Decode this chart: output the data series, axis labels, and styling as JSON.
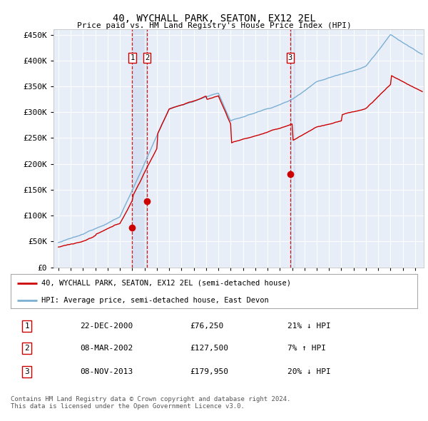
{
  "title": "40, WYCHALL PARK, SEATON, EX12 2EL",
  "subtitle": "Price paid vs. HM Land Registry's House Price Index (HPI)",
  "bg_color": "#ffffff",
  "plot_bg_color": "#e8eef8",
  "hpi_color": "#7bafd4",
  "price_color": "#cc0000",
  "vline_color": "#cc0000",
  "shade_color": "#d0dcf0",
  "transactions": [
    {
      "label": "1",
      "date_num": 2001.0,
      "price": 76250,
      "marker_y": 76250
    },
    {
      "label": "2",
      "date_num": 2002.2,
      "price": 127500,
      "marker_y": 127500
    },
    {
      "label": "3",
      "date_num": 2013.85,
      "price": 179950,
      "marker_y": 179950
    }
  ],
  "legend_entries": [
    "40, WYCHALL PARK, SEATON, EX12 2EL (semi-detached house)",
    "HPI: Average price, semi-detached house, East Devon"
  ],
  "table_rows": [
    [
      "1",
      "22-DEC-2000",
      "£76,250",
      "21% ↓ HPI"
    ],
    [
      "2",
      "08-MAR-2002",
      "£127,500",
      "7% ↑ HPI"
    ],
    [
      "3",
      "08-NOV-2013",
      "£179,950",
      "20% ↓ HPI"
    ]
  ],
  "footer": "Contains HM Land Registry data © Crown copyright and database right 2024.\nThis data is licensed under the Open Government Licence v3.0.",
  "ylim": [
    0,
    460000
  ],
  "yticks": [
    0,
    50000,
    100000,
    150000,
    200000,
    250000,
    300000,
    350000,
    400000,
    450000
  ],
  "xlim_start": 1994.6,
  "xlim_end": 2024.7
}
